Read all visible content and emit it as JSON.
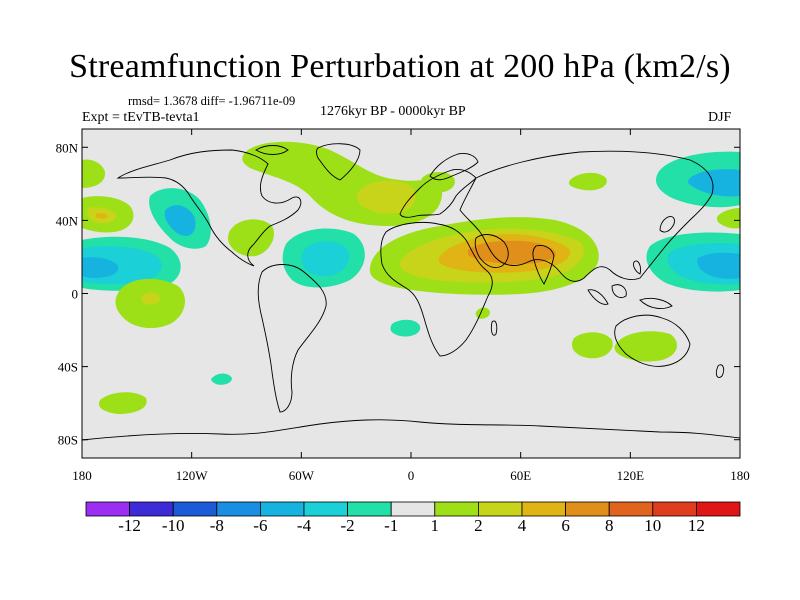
{
  "title": "Streamfunction Perturbation at 200 hPa (km2/s)",
  "stats": "rmsd= 1.3678 diff= -1.96711e-09",
  "experiment": "Expt = tEvTB-tevta1",
  "period": "1276kyr BP - 0000kyr BP",
  "season": "DJF",
  "map": {
    "background": "#e6e6e6",
    "lat_ticks": [
      "80N",
      "40N",
      "0",
      "40S",
      "80S"
    ],
    "lon_ticks": [
      "180",
      "120W",
      "60W",
      "0",
      "60E",
      "120E",
      "180"
    ]
  },
  "colorbar": {
    "colors": [
      "#9b2ef2",
      "#3c2bd6",
      "#1c5ad8",
      "#1a8ee0",
      "#17b3e0",
      "#1bd0d6",
      "#22e0a8",
      "#e6e6e6",
      "#9ee018",
      "#c8d41a",
      "#e0b414",
      "#e0901a",
      "#e0641e",
      "#e03c1e",
      "#e01616"
    ],
    "labels": [
      "-12",
      "-10",
      "-8",
      "-6",
      "-4",
      "-2",
      "-1",
      "1",
      "2",
      "4",
      "6",
      "8",
      "10",
      "12"
    ]
  }
}
